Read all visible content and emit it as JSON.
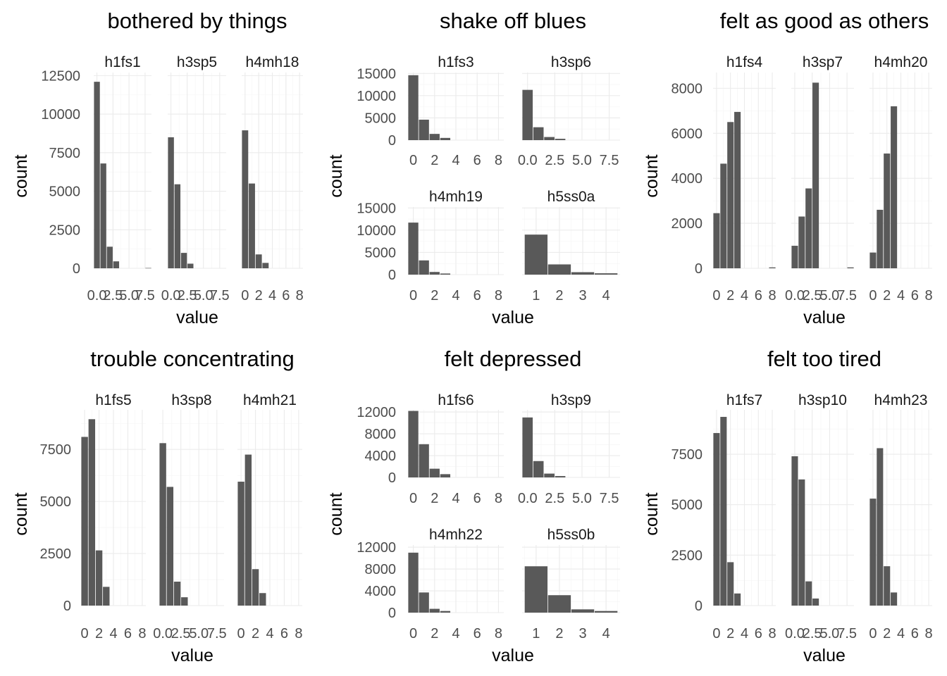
{
  "chart_data": [
    {
      "type": "bar",
      "title": "bothered by things",
      "xlabel": "value",
      "ylabel": "count",
      "layout": "1x3",
      "shared_y": true,
      "ylim": [
        0,
        12700
      ],
      "y_breaks": [
        0,
        2500,
        5000,
        7500,
        10000,
        12500
      ],
      "facets": [
        {
          "label": "h1fs1",
          "xlim": [
            -0.5,
            8.5
          ],
          "x_breaks": [
            0,
            2.5,
            5,
            7.5
          ],
          "x_labels": [
            "0.0",
            "2.5",
            "5.0",
            "7.5"
          ],
          "bars": [
            {
              "x": 0,
              "y": 12100
            },
            {
              "x": 1,
              "y": 6800
            },
            {
              "x": 2,
              "y": 1400
            },
            {
              "x": 3,
              "y": 450
            },
            {
              "x": 8,
              "y": 20
            }
          ]
        },
        {
          "label": "h3sp5",
          "xlim": [
            -0.5,
            8.5
          ],
          "x_breaks": [
            0,
            2.5,
            5,
            7.5
          ],
          "x_labels": [
            "0.0",
            "2.5",
            "5.0",
            "7.5"
          ],
          "bars": [
            {
              "x": 0,
              "y": 8500
            },
            {
              "x": 1,
              "y": 5450
            },
            {
              "x": 2,
              "y": 1000
            },
            {
              "x": 3,
              "y": 300
            }
          ]
        },
        {
          "label": "h4mh18",
          "xlim": [
            -0.5,
            8.5
          ],
          "x_breaks": [
            0,
            2,
            4,
            6,
            8
          ],
          "x_labels": [
            "0",
            "2",
            "4",
            "6",
            "8"
          ],
          "bars": [
            {
              "x": 0,
              "y": 8950
            },
            {
              "x": 1,
              "y": 5500
            },
            {
              "x": 2,
              "y": 900
            },
            {
              "x": 3,
              "y": 350
            }
          ]
        }
      ]
    },
    {
      "type": "bar",
      "title": "shake off blues",
      "xlabel": "value",
      "ylabel": "count",
      "layout": "2x2",
      "shared_y": true,
      "ylim": [
        0,
        15200
      ],
      "y_breaks": [
        0,
        5000,
        10000,
        15000
      ],
      "facets": [
        {
          "label": "h1fs3",
          "xlim": [
            -0.5,
            8.5
          ],
          "x_breaks": [
            0,
            2,
            4,
            6,
            8
          ],
          "x_labels": [
            "0",
            "2",
            "4",
            "6",
            "8"
          ],
          "bars": [
            {
              "x": 0,
              "y": 14600
            },
            {
              "x": 1,
              "y": 4600
            },
            {
              "x": 2,
              "y": 1400
            },
            {
              "x": 3,
              "y": 500
            }
          ]
        },
        {
          "label": "h3sp6",
          "xlim": [
            -0.5,
            8.5
          ],
          "x_breaks": [
            0,
            2.5,
            5,
            7.5
          ],
          "x_labels": [
            "0.0",
            "2.5",
            "5.0",
            "7.5"
          ],
          "bars": [
            {
              "x": 0,
              "y": 11300
            },
            {
              "x": 1,
              "y": 2900
            },
            {
              "x": 2,
              "y": 700
            },
            {
              "x": 3,
              "y": 300
            }
          ]
        },
        {
          "label": "h4mh19",
          "xlim": [
            -0.5,
            8.5
          ],
          "x_breaks": [
            0,
            2,
            4,
            6,
            8
          ],
          "x_labels": [
            "0",
            "2",
            "4",
            "6",
            "8"
          ],
          "bars": [
            {
              "x": 0,
              "y": 11700
            },
            {
              "x": 1,
              "y": 3200
            },
            {
              "x": 2,
              "y": 600
            },
            {
              "x": 3,
              "y": 250
            }
          ]
        },
        {
          "label": "h5ss0a",
          "xlim": [
            0.4,
            4.6
          ],
          "x_breaks": [
            1,
            2,
            3,
            4
          ],
          "x_labels": [
            "1",
            "2",
            "3",
            "4"
          ],
          "bars": [
            {
              "x": 1,
              "y": 9000
            },
            {
              "x": 2,
              "y": 2300
            },
            {
              "x": 3,
              "y": 550
            },
            {
              "x": 4,
              "y": 300
            }
          ]
        }
      ]
    },
    {
      "type": "bar",
      "title": "felt as good as others",
      "xlabel": "value",
      "ylabel": "count",
      "layout": "1x3",
      "shared_y": true,
      "ylim": [
        0,
        8700
      ],
      "y_breaks": [
        0,
        2000,
        4000,
        6000,
        8000
      ],
      "facets": [
        {
          "label": "h1fs4",
          "xlim": [
            -0.5,
            8.5
          ],
          "x_breaks": [
            0,
            2,
            4,
            6,
            8
          ],
          "x_labels": [
            "0",
            "2",
            "4",
            "6",
            "8"
          ],
          "bars": [
            {
              "x": 0,
              "y": 2450
            },
            {
              "x": 1,
              "y": 4650
            },
            {
              "x": 2,
              "y": 6500
            },
            {
              "x": 3,
              "y": 6950
            },
            {
              "x": 8,
              "y": 40
            }
          ]
        },
        {
          "label": "h3sp7",
          "xlim": [
            -0.5,
            8.5
          ],
          "x_breaks": [
            0,
            2.5,
            5,
            7.5
          ],
          "x_labels": [
            "0.0",
            "2.5",
            "5.0",
            "7.5"
          ],
          "bars": [
            {
              "x": 0,
              "y": 1000
            },
            {
              "x": 1,
              "y": 2300
            },
            {
              "x": 2,
              "y": 3550
            },
            {
              "x": 3,
              "y": 8250
            },
            {
              "x": 8,
              "y": 40
            }
          ]
        },
        {
          "label": "h4mh20",
          "xlim": [
            -0.5,
            8.5
          ],
          "x_breaks": [
            0,
            2,
            4,
            6,
            8
          ],
          "x_labels": [
            "0",
            "2",
            "4",
            "6",
            "8"
          ],
          "bars": [
            {
              "x": 0,
              "y": 700
            },
            {
              "x": 1,
              "y": 2600
            },
            {
              "x": 2,
              "y": 5100
            },
            {
              "x": 3,
              "y": 7200
            }
          ]
        }
      ]
    },
    {
      "type": "bar",
      "title": "trouble concentrating",
      "xlabel": "value",
      "ylabel": "count",
      "layout": "1x3",
      "shared_y": true,
      "ylim": [
        0,
        9400
      ],
      "y_breaks": [
        0,
        2500,
        5000,
        7500
      ],
      "facets": [
        {
          "label": "h1fs5",
          "xlim": [
            -0.5,
            8.5
          ],
          "x_breaks": [
            0,
            2,
            4,
            6,
            8
          ],
          "x_labels": [
            "0",
            "2",
            "4",
            "6",
            "8"
          ],
          "bars": [
            {
              "x": 0,
              "y": 8100
            },
            {
              "x": 1,
              "y": 8950
            },
            {
              "x": 2,
              "y": 2650
            },
            {
              "x": 3,
              "y": 900
            }
          ]
        },
        {
          "label": "h3sp8",
          "xlim": [
            -0.5,
            8.5
          ],
          "x_breaks": [
            0,
            2.5,
            5,
            7.5
          ],
          "x_labels": [
            "0.0",
            "2.5",
            "5.0",
            "7.5"
          ],
          "bars": [
            {
              "x": 0,
              "y": 7800
            },
            {
              "x": 1,
              "y": 5700
            },
            {
              "x": 2,
              "y": 1150
            },
            {
              "x": 3,
              "y": 400
            }
          ]
        },
        {
          "label": "h4mh21",
          "xlim": [
            -0.5,
            8.5
          ],
          "x_breaks": [
            0,
            2,
            4,
            6,
            8
          ],
          "x_labels": [
            "0",
            "2",
            "4",
            "6",
            "8"
          ],
          "bars": [
            {
              "x": 0,
              "y": 5950
            },
            {
              "x": 1,
              "y": 7250
            },
            {
              "x": 2,
              "y": 1750
            },
            {
              "x": 3,
              "y": 600
            }
          ]
        }
      ]
    },
    {
      "type": "bar",
      "title": "felt depressed",
      "xlabel": "value",
      "ylabel": "count",
      "layout": "2x2",
      "shared_y": true,
      "ylim": [
        0,
        12400
      ],
      "y_breaks": [
        0,
        4000,
        8000,
        12000
      ],
      "facets": [
        {
          "label": "h1fs6",
          "xlim": [
            -0.5,
            8.5
          ],
          "x_breaks": [
            0,
            2,
            4,
            6,
            8
          ],
          "x_labels": [
            "0",
            "2",
            "4",
            "6",
            "8"
          ],
          "bars": [
            {
              "x": 0,
              "y": 12200
            },
            {
              "x": 1,
              "y": 6100
            },
            {
              "x": 2,
              "y": 1600
            },
            {
              "x": 3,
              "y": 600
            }
          ]
        },
        {
          "label": "h3sp9",
          "xlim": [
            -0.5,
            8.5
          ],
          "x_breaks": [
            0,
            2.5,
            5,
            7.5
          ],
          "x_labels": [
            "0.0",
            "2.5",
            "5.0",
            "7.5"
          ],
          "bars": [
            {
              "x": 0,
              "y": 11000
            },
            {
              "x": 1,
              "y": 3000
            },
            {
              "x": 2,
              "y": 700
            },
            {
              "x": 3,
              "y": 250
            }
          ]
        },
        {
          "label": "h4mh22",
          "xlim": [
            -0.5,
            8.5
          ],
          "x_breaks": [
            0,
            2,
            4,
            6,
            8
          ],
          "x_labels": [
            "0",
            "2",
            "4",
            "6",
            "8"
          ],
          "bars": [
            {
              "x": 0,
              "y": 11000
            },
            {
              "x": 1,
              "y": 3700
            },
            {
              "x": 2,
              "y": 700
            },
            {
              "x": 3,
              "y": 300
            }
          ]
        },
        {
          "label": "h5ss0b",
          "xlim": [
            0.4,
            4.6
          ],
          "x_breaks": [
            1,
            2,
            3,
            4
          ],
          "x_labels": [
            "1",
            "2",
            "3",
            "4"
          ],
          "bars": [
            {
              "x": 1,
              "y": 8500
            },
            {
              "x": 2,
              "y": 3200
            },
            {
              "x": 3,
              "y": 600
            },
            {
              "x": 4,
              "y": 300
            }
          ]
        }
      ]
    },
    {
      "type": "bar",
      "title": "felt too tired",
      "xlabel": "value",
      "ylabel": "count",
      "layout": "1x3",
      "shared_y": true,
      "ylim": [
        0,
        9700
      ],
      "y_breaks": [
        0,
        2500,
        5000,
        7500
      ],
      "facets": [
        {
          "label": "h1fs7",
          "xlim": [
            -0.5,
            8.5
          ],
          "x_breaks": [
            0,
            2,
            4,
            6,
            8
          ],
          "x_labels": [
            "0",
            "2",
            "4",
            "6",
            "8"
          ],
          "bars": [
            {
              "x": 0,
              "y": 8550
            },
            {
              "x": 1,
              "y": 9350
            },
            {
              "x": 2,
              "y": 2150
            },
            {
              "x": 3,
              "y": 600
            }
          ]
        },
        {
          "label": "h3sp10",
          "xlim": [
            -0.5,
            8.5
          ],
          "x_breaks": [
            0,
            2.5,
            5,
            7.5
          ],
          "x_labels": [
            "0.0",
            "2.5",
            "5.0",
            "7.5"
          ],
          "bars": [
            {
              "x": 0,
              "y": 7400
            },
            {
              "x": 1,
              "y": 6250
            },
            {
              "x": 2,
              "y": 1200
            },
            {
              "x": 3,
              "y": 350
            }
          ]
        },
        {
          "label": "h4mh23",
          "xlim": [
            -0.5,
            8.5
          ],
          "x_breaks": [
            0,
            2,
            4,
            6,
            8
          ],
          "x_labels": [
            "0",
            "2",
            "4",
            "6",
            "8"
          ],
          "bars": [
            {
              "x": 0,
              "y": 5300
            },
            {
              "x": 1,
              "y": 7800
            },
            {
              "x": 2,
              "y": 1950
            },
            {
              "x": 3,
              "y": 650
            }
          ]
        }
      ]
    }
  ]
}
